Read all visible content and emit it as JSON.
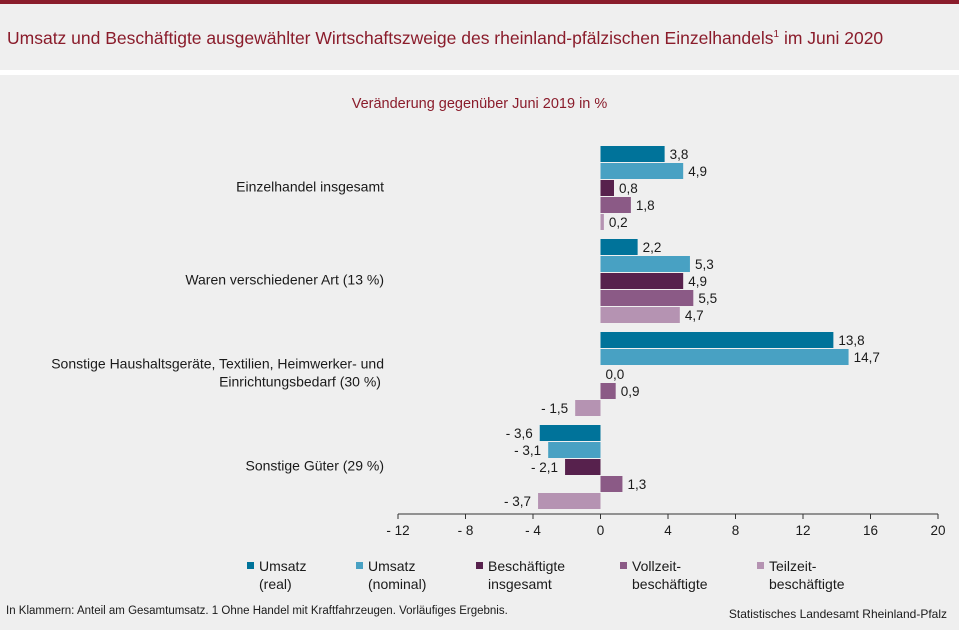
{
  "header": {
    "title": "Umsatz und Beschäftigte ausgewählter Wirtschaftszweige des rheinland-pfälzischen Einzelhandels",
    "title_sup": "1",
    "title_suffix": " im Juni 2020"
  },
  "chart_data": {
    "type": "bar",
    "orientation": "horizontal",
    "subtitle": "Veränderung gegenüber Juni 2019 in %",
    "categories": [
      "Einzelhandel insgesamt",
      "Waren verschiedener Art (13 %)",
      "Sonstige Haushaltsgeräte, Textilien, Heimwerker- und\nEinrichtungsbedarf (30 %)",
      "Sonstige Güter (29 %)"
    ],
    "series": [
      {
        "name": "Umsatz\n(real)",
        "color": "#00739a",
        "values": [
          3.8,
          2.2,
          13.8,
          -3.6
        ],
        "labels": [
          "3,8",
          "2,2",
          "13,8",
          "- 3,6"
        ]
      },
      {
        "name": "Umsatz\n(nominal)",
        "color": "#48a1c3",
        "values": [
          4.9,
          5.3,
          14.7,
          -3.1
        ],
        "labels": [
          "4,9",
          "5,3",
          "14,7",
          "- 3,1"
        ]
      },
      {
        "name": "Beschäftigte\ninsgesamt",
        "color": "#57214d",
        "values": [
          0.8,
          4.9,
          0.0,
          -2.1
        ],
        "labels": [
          "0,8",
          "4,9",
          "0,0",
          "- 2,1"
        ]
      },
      {
        "name": "Vollzeit-\nbeschäftigte",
        "color": "#8b5a86",
        "values": [
          1.8,
          5.5,
          0.9,
          1.3
        ],
        "labels": [
          "1,8",
          "5,5",
          "0,9",
          "1,3"
        ]
      },
      {
        "name": "Teilzeit-\nbeschäftigte",
        "color": "#b593b2",
        "values": [
          0.2,
          4.7,
          -1.5,
          -3.7
        ],
        "labels": [
          "0,2",
          "4,7",
          "- 1,5",
          "- 3,7"
        ]
      }
    ],
    "xlim": [
      -12,
      20
    ],
    "xticks": [
      -12,
      -8,
      -4,
      0,
      4,
      8,
      12,
      16,
      20
    ],
    "xtick_labels": [
      "- 12",
      "- 8",
      "- 4",
      "0",
      "4",
      "8",
      "12",
      "16",
      "20"
    ],
    "legend_position": "bottom",
    "grid": false
  },
  "footer": {
    "note": "In Klammern: Anteil am Gesamtumsatz. 1 Ohne Handel mit Kraftfahrzeugen. Vorläufiges Ergebnis.",
    "source": "Statistisches Landesamt Rheinland-Pfalz"
  }
}
